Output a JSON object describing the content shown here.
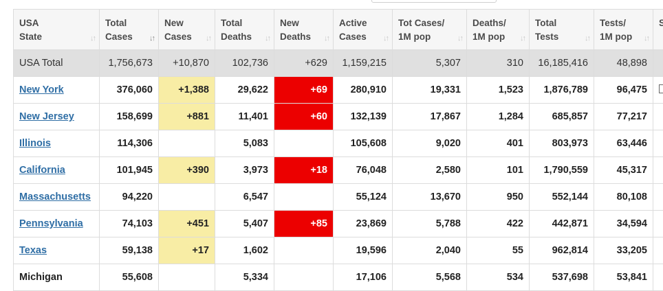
{
  "columns": [
    {
      "label": "USA\nState",
      "active_sort": false
    },
    {
      "label": "Total\nCases",
      "active_sort": true
    },
    {
      "label": "New\nCases",
      "active_sort": false
    },
    {
      "label": "Total\nDeaths",
      "active_sort": false
    },
    {
      "label": "New\nDeaths",
      "active_sort": false
    },
    {
      "label": "Active\nCases",
      "active_sort": false
    },
    {
      "label": "Tot Cases/\n1M pop",
      "active_sort": false
    },
    {
      "label": "Deaths/\n1M pop",
      "active_sort": false
    },
    {
      "label": "Total\nTests",
      "active_sort": false
    },
    {
      "label": "Tests/\n1M pop",
      "active_sort": false
    },
    {
      "label": "S",
      "active_sort": false
    }
  ],
  "total_row": {
    "state": "USA Total",
    "total_cases": "1,756,673",
    "new_cases": "+10,870",
    "total_deaths": "102,736",
    "new_deaths": "+629",
    "active_cases": "1,159,215",
    "tot_cases_per_1m": "5,307",
    "deaths_per_1m": "310",
    "total_tests": "16,185,416",
    "tests_per_1m": "48,898"
  },
  "rows": [
    {
      "state": "New York",
      "is_link": true,
      "total_cases": "376,060",
      "new_cases": "+1,388",
      "total_deaths": "29,622",
      "new_deaths": "+69",
      "active_cases": "280,910",
      "tot_cases_per_1m": "19,331",
      "deaths_per_1m": "1,523",
      "total_tests": "1,876,789",
      "tests_per_1m": "96,475"
    },
    {
      "state": "New Jersey",
      "is_link": true,
      "total_cases": "158,699",
      "new_cases": "+881",
      "total_deaths": "11,401",
      "new_deaths": "+60",
      "active_cases": "132,139",
      "tot_cases_per_1m": "17,867",
      "deaths_per_1m": "1,284",
      "total_tests": "685,857",
      "tests_per_1m": "77,217"
    },
    {
      "state": "Illinois",
      "is_link": true,
      "total_cases": "114,306",
      "new_cases": "",
      "total_deaths": "5,083",
      "new_deaths": "",
      "active_cases": "105,608",
      "tot_cases_per_1m": "9,020",
      "deaths_per_1m": "401",
      "total_tests": "803,973",
      "tests_per_1m": "63,446"
    },
    {
      "state": "California",
      "is_link": true,
      "total_cases": "101,945",
      "new_cases": "+390",
      "total_deaths": "3,973",
      "new_deaths": "+18",
      "active_cases": "76,048",
      "tot_cases_per_1m": "2,580",
      "deaths_per_1m": "101",
      "total_tests": "1,790,559",
      "tests_per_1m": "45,317"
    },
    {
      "state": "Massachusetts",
      "is_link": true,
      "total_cases": "94,220",
      "new_cases": "",
      "total_deaths": "6,547",
      "new_deaths": "",
      "active_cases": "55,124",
      "tot_cases_per_1m": "13,670",
      "deaths_per_1m": "950",
      "total_tests": "552,144",
      "tests_per_1m": "80,108"
    },
    {
      "state": "Pennsylvania",
      "is_link": true,
      "total_cases": "74,103",
      "new_cases": "+451",
      "total_deaths": "5,407",
      "new_deaths": "+85",
      "active_cases": "23,869",
      "tot_cases_per_1m": "5,788",
      "deaths_per_1m": "422",
      "total_tests": "442,871",
      "tests_per_1m": "34,594"
    },
    {
      "state": "Texas",
      "is_link": true,
      "total_cases": "59,138",
      "new_cases": "+17",
      "total_deaths": "1,602",
      "new_deaths": "",
      "active_cases": "19,596",
      "tot_cases_per_1m": "2,040",
      "deaths_per_1m": "55",
      "total_tests": "962,814",
      "tests_per_1m": "33,205"
    },
    {
      "state": "Michigan",
      "is_link": false,
      "total_cases": "55,608",
      "new_cases": "",
      "total_deaths": "5,334",
      "new_deaths": "",
      "active_cases": "17,106",
      "tot_cases_per_1m": "5,568",
      "deaths_per_1m": "534",
      "total_tests": "537,698",
      "tests_per_1m": "53,841"
    }
  ],
  "colors": {
    "new_cases_highlight": "#f8eda5",
    "new_deaths_highlight": "#ec0000",
    "link": "#2f6ea5",
    "total_row_bg": "#e0e0e0",
    "header_bg": "#f6f6f6"
  },
  "icons": {
    "sort": "sort-arrows-icon"
  }
}
